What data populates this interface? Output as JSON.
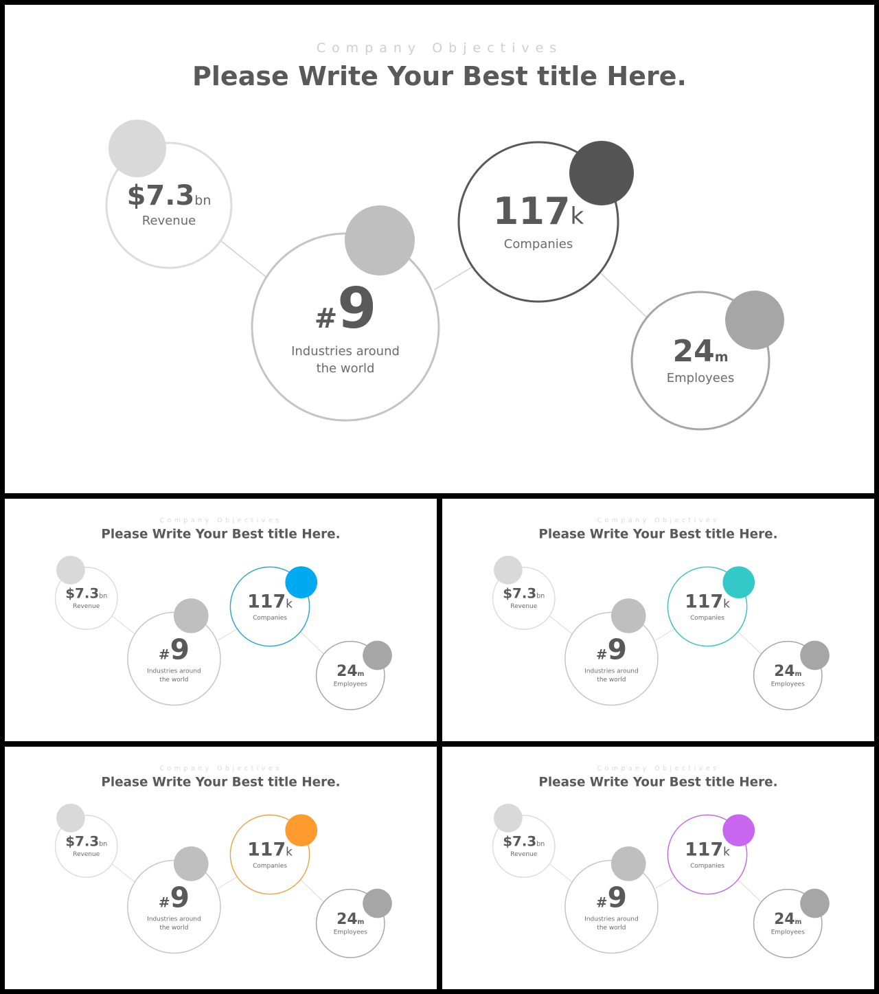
{
  "subtitle": "Company Objectives",
  "title": "Please Write Your Best title Here.",
  "stats": {
    "revenue": {
      "value": "$7.3",
      "unit": "bn",
      "label": "Revenue"
    },
    "industries": {
      "prefix": "#",
      "value": "9",
      "label_line1": "Industries around",
      "label_line2": "the world"
    },
    "companies": {
      "value": "117",
      "unit": "k",
      "label": "Companies"
    },
    "employees": {
      "value": "24",
      "unit": "m",
      "label": "Employees"
    }
  },
  "variants": [
    {
      "id": "main",
      "accent": "#555555",
      "ring": "#595959"
    },
    {
      "id": "blue",
      "accent": "#00aaf0",
      "ring": "#2ea7d4"
    },
    {
      "id": "teal",
      "accent": "#33c9c9",
      "ring": "#3cc2c2"
    },
    {
      "id": "orange",
      "accent": "#ff9a2e",
      "ring": "#f0a348"
    },
    {
      "id": "purple",
      "accent": "#c866f0",
      "ring": "#c46ae8"
    }
  ]
}
